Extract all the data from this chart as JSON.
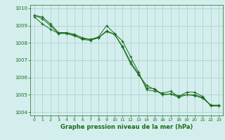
{
  "line1": {
    "x": [
      0,
      1,
      2,
      3,
      4,
      5,
      6,
      7,
      8,
      9,
      10,
      11,
      12,
      13,
      14,
      15,
      16,
      17,
      18,
      19,
      20,
      21,
      22,
      23
    ],
    "y": [
      1009.6,
      1009.5,
      1009.1,
      1008.6,
      1008.6,
      1008.5,
      1008.3,
      1008.2,
      1008.35,
      1009.0,
      1008.55,
      1008.1,
      1007.2,
      1006.3,
      1005.3,
      1005.2,
      1005.1,
      1005.2,
      1004.9,
      1005.15,
      1005.15,
      1004.9,
      1004.35,
      1004.35
    ]
  },
  "line2": {
    "x": [
      0,
      1,
      2,
      3,
      4,
      5,
      6,
      7,
      8,
      9,
      10,
      11,
      12,
      13,
      14,
      15,
      16,
      17,
      18,
      19,
      20,
      21,
      22,
      23
    ],
    "y": [
      1009.6,
      1009.4,
      1009.0,
      1008.55,
      1008.55,
      1008.45,
      1008.2,
      1008.15,
      1008.3,
      1008.7,
      1008.5,
      1007.8,
      1006.9,
      1006.2,
      1005.4,
      1005.35,
      1005.0,
      1005.05,
      1004.95,
      1005.0,
      1005.0,
      1004.85,
      1004.4,
      1004.4
    ]
  },
  "line3": {
    "x": [
      0,
      1,
      2,
      3,
      4,
      5,
      6,
      7,
      8,
      9,
      10,
      11,
      12,
      13,
      14,
      15,
      16,
      17,
      18,
      19,
      20,
      21,
      22,
      23
    ],
    "y": [
      1009.5,
      1009.1,
      1008.8,
      1008.55,
      1008.55,
      1008.4,
      1008.25,
      1008.2,
      1008.3,
      1008.65,
      1008.5,
      1007.75,
      1006.8,
      1006.15,
      1005.55,
      1005.3,
      1005.0,
      1005.05,
      1004.85,
      1005.0,
      1004.95,
      1004.8,
      1004.4,
      1004.35
    ]
  },
  "line_color": "#1a6b1a",
  "marker": "+",
  "markersize": 3,
  "background_color": "#d4eeee",
  "grid_color": "#aacccc",
  "xlabel": "Graphe pression niveau de la mer (hPa)",
  "xlabel_color": "#1a6b1a",
  "tick_color": "#1a6b1a",
  "ylim": [
    1003.8,
    1010.2
  ],
  "xlim": [
    -0.5,
    23.5
  ],
  "yticks": [
    1004,
    1005,
    1006,
    1007,
    1008,
    1009,
    1010
  ],
  "xticks": [
    0,
    1,
    2,
    3,
    4,
    5,
    6,
    7,
    8,
    9,
    10,
    11,
    12,
    13,
    14,
    15,
    16,
    17,
    18,
    19,
    20,
    21,
    22,
    23
  ]
}
